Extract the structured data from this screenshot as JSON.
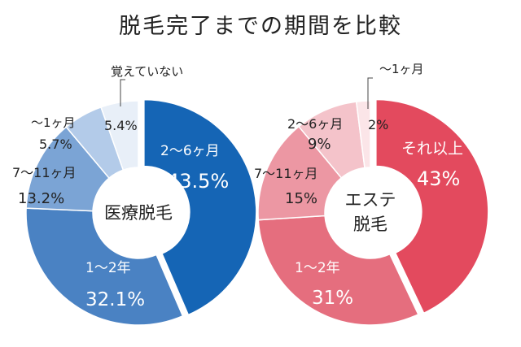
{
  "chart_data": {
    "type": "pie",
    "title": "脱毛完了までの期間を比較",
    "charts": [
      {
        "center_label": [
          "医療脱毛"
        ],
        "slices": [
          {
            "label": "2〜6ヶ月",
            "value": 43.5,
            "value_text": "43.5%",
            "color": "#1565b5"
          },
          {
            "label": "1〜2年",
            "value": 32.1,
            "value_text": "32.1%",
            "color": "#4a82c3"
          },
          {
            "label": "7〜11ヶ月",
            "value": 13.2,
            "value_text": "13.2%",
            "color": "#7ba4d5"
          },
          {
            "label": "〜1ヶ月",
            "value": 5.7,
            "value_text": "5.7%",
            "color": "#b3cbe9"
          },
          {
            "label": "覚えていない",
            "value": 5.4,
            "value_text": "5.4%",
            "color": "#e8eff8"
          }
        ]
      },
      {
        "center_label": [
          "エステ",
          "脱毛"
        ],
        "slices": [
          {
            "label": "それ以上",
            "value": 43,
            "value_text": "43%",
            "color": "#e34a5e"
          },
          {
            "label": "1〜2年",
            "value": 31,
            "value_text": "31%",
            "color": "#e56e7e"
          },
          {
            "label": "7〜11ヶ月",
            "value": 15,
            "value_text": "15%",
            "color": "#ec97a3"
          },
          {
            "label": "2〜6ヶ月",
            "value": 9,
            "value_text": "9%",
            "color": "#f4c3ca"
          },
          {
            "label": "〜1ヶ月",
            "value": 2,
            "value_text": "2%",
            "color": "#fbe5e8"
          }
        ]
      }
    ]
  }
}
